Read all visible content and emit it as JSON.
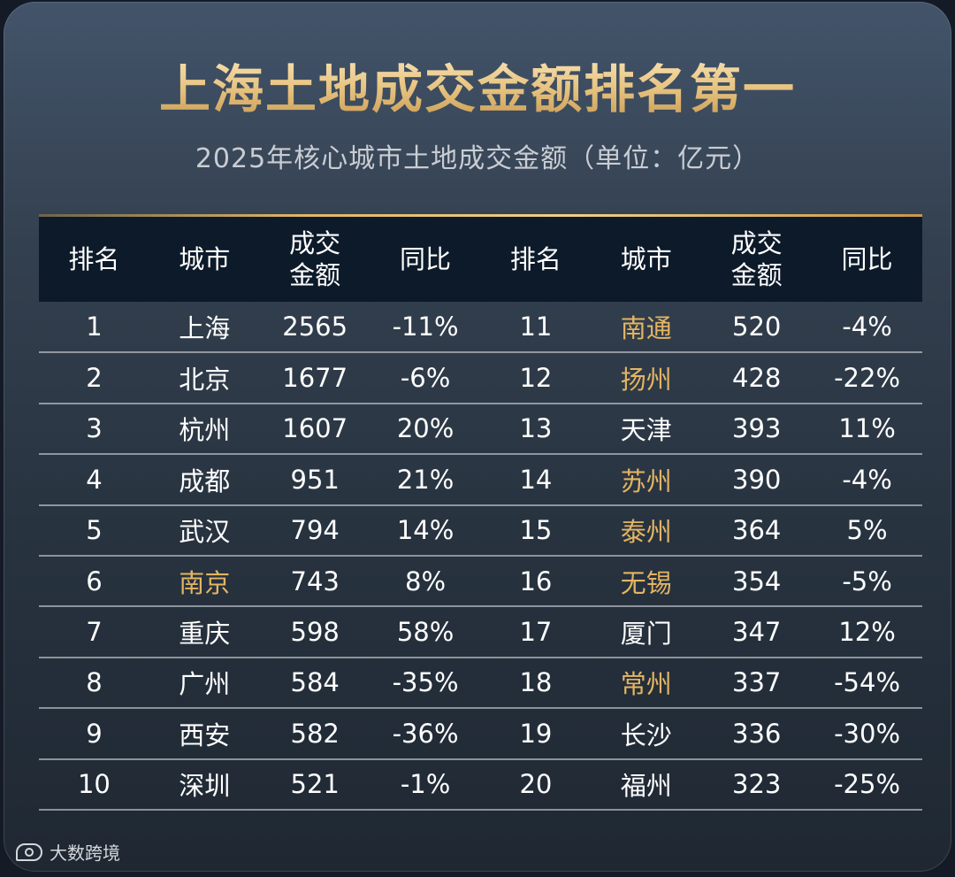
{
  "title": "上海土地成交金额排名第一",
  "subtitle": "2025年核心城市土地成交金额（单位：亿元）",
  "headers": {
    "rank": "排名",
    "city": "城市",
    "amount_line1": "成交",
    "amount_line2": "金额",
    "yoy": "同比"
  },
  "highlight_color": "#e3b563",
  "left_rows": [
    {
      "rank": "1",
      "city": "上海",
      "amount": "2565",
      "yoy": "-11%",
      "highlight": false
    },
    {
      "rank": "2",
      "city": "北京",
      "amount": "1677",
      "yoy": "-6%",
      "highlight": false
    },
    {
      "rank": "3",
      "city": "杭州",
      "amount": "1607",
      "yoy": "20%",
      "highlight": false
    },
    {
      "rank": "4",
      "city": "成都",
      "amount": "951",
      "yoy": "21%",
      "highlight": false
    },
    {
      "rank": "5",
      "city": "武汉",
      "amount": "794",
      "yoy": "14%",
      "highlight": false
    },
    {
      "rank": "6",
      "city": "南京",
      "amount": "743",
      "yoy": "8%",
      "highlight": true
    },
    {
      "rank": "7",
      "city": "重庆",
      "amount": "598",
      "yoy": "58%",
      "highlight": false
    },
    {
      "rank": "8",
      "city": "广州",
      "amount": "584",
      "yoy": "-35%",
      "highlight": false
    },
    {
      "rank": "9",
      "city": "西安",
      "amount": "582",
      "yoy": "-36%",
      "highlight": false
    },
    {
      "rank": "10",
      "city": "深圳",
      "amount": "521",
      "yoy": "-1%",
      "highlight": false
    }
  ],
  "right_rows": [
    {
      "rank": "11",
      "city": "南通",
      "amount": "520",
      "yoy": "-4%",
      "highlight": true
    },
    {
      "rank": "12",
      "city": "扬州",
      "amount": "428",
      "yoy": "-22%",
      "highlight": true
    },
    {
      "rank": "13",
      "city": "天津",
      "amount": "393",
      "yoy": "11%",
      "highlight": false
    },
    {
      "rank": "14",
      "city": "苏州",
      "amount": "390",
      "yoy": "-4%",
      "highlight": true
    },
    {
      "rank": "15",
      "city": "泰州",
      "amount": "364",
      "yoy": "5%",
      "highlight": true
    },
    {
      "rank": "16",
      "city": "无锡",
      "amount": "354",
      "yoy": "-5%",
      "highlight": true
    },
    {
      "rank": "17",
      "city": "厦门",
      "amount": "347",
      "yoy": "12%",
      "highlight": false
    },
    {
      "rank": "18",
      "city": "常州",
      "amount": "337",
      "yoy": "-54%",
      "highlight": true
    },
    {
      "rank": "19",
      "city": "长沙",
      "amount": "336",
      "yoy": "-30%",
      "highlight": false
    },
    {
      "rank": "20",
      "city": "福州",
      "amount": "323",
      "yoy": "-25%",
      "highlight": false
    }
  ],
  "watermark": "大数跨境"
}
